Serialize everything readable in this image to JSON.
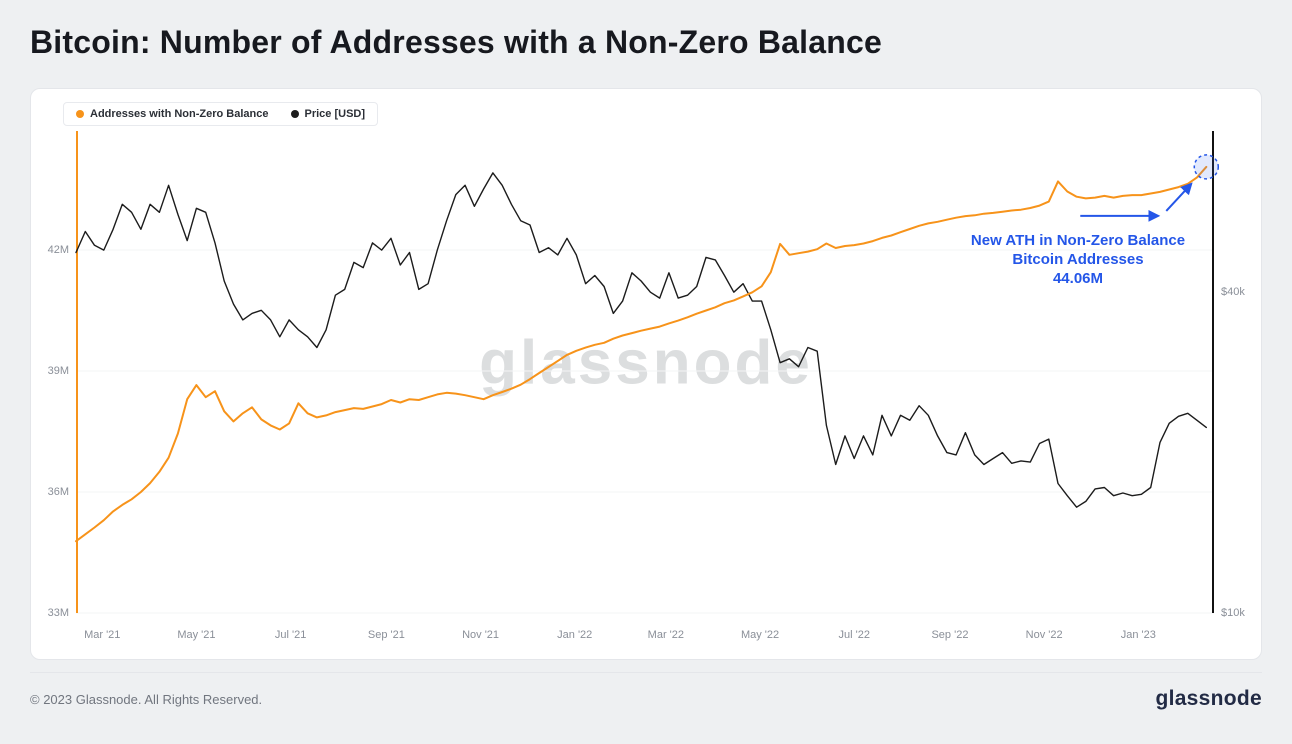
{
  "header": {
    "title": "Bitcoin: Number of Addresses with a Non-Zero Balance"
  },
  "legend": [
    {
      "label": "Addresses with Non-Zero Balance",
      "color": "#F7931A"
    },
    {
      "label": "Price [USD]",
      "color": "#1c1c1c"
    }
  ],
  "watermark": "glassnode",
  "annotation": {
    "lines": [
      "New ATH in Non-Zero Balance",
      "Bitcoin Addresses",
      "44.06M"
    ],
    "color": "#2456e8"
  },
  "footer": {
    "copyright": "© 2023 Glassnode. All Rights Reserved.",
    "brand": "glassnode"
  },
  "chart_data": {
    "type": "line",
    "title": "Bitcoin: Number of Addresses with a Non-Zero Balance",
    "x_domain": [
      "2021-02-12",
      "2023-02-19"
    ],
    "x_ticks": [
      {
        "date": "2021-03-01",
        "label": "Mar '21"
      },
      {
        "date": "2021-05-01",
        "label": "May '21"
      },
      {
        "date": "2021-07-01",
        "label": "Jul '21"
      },
      {
        "date": "2021-09-01",
        "label": "Sep '21"
      },
      {
        "date": "2021-11-01",
        "label": "Nov '21"
      },
      {
        "date": "2022-01-01",
        "label": "Jan '22"
      },
      {
        "date": "2022-03-01",
        "label": "Mar '22"
      },
      {
        "date": "2022-05-01",
        "label": "May '22"
      },
      {
        "date": "2022-07-01",
        "label": "Jul '22"
      },
      {
        "date": "2022-09-01",
        "label": "Sep '22"
      },
      {
        "date": "2022-11-01",
        "label": "Nov '22"
      },
      {
        "date": "2023-01-01",
        "label": "Jan '23"
      }
    ],
    "left_axis": {
      "unit": "M addresses",
      "scale": "linear",
      "ylim": [
        33,
        44.95
      ],
      "ticks": [
        {
          "value": 33,
          "label": "33M"
        },
        {
          "value": 36,
          "label": "36M"
        },
        {
          "value": 39,
          "label": "39M"
        },
        {
          "value": 42,
          "label": "42M"
        }
      ]
    },
    "right_axis": {
      "unit": "USD (thousands)",
      "scale": "log",
      "ylim": [
        10,
        80.3
      ],
      "ticks": [
        {
          "value": 10,
          "label": "$10k"
        },
        {
          "value": 40,
          "label": "$40k"
        }
      ]
    },
    "ath_marker": {
      "value_label": "44.06M"
    },
    "series": [
      {
        "name": "Addresses with Non-Zero Balance",
        "color": "#F7931A",
        "axis": "left",
        "start": "2021-02-12",
        "step_days": 6,
        "values": [
          34.78,
          34.95,
          35.12,
          35.3,
          35.52,
          35.68,
          35.82,
          36.0,
          36.22,
          36.5,
          36.85,
          37.45,
          38.3,
          38.65,
          38.35,
          38.5,
          38.0,
          37.75,
          37.95,
          38.1,
          37.8,
          37.65,
          37.55,
          37.7,
          38.2,
          37.95,
          37.85,
          37.9,
          37.98,
          38.03,
          38.08,
          38.06,
          38.12,
          38.18,
          38.28,
          38.22,
          38.3,
          38.28,
          38.35,
          38.42,
          38.46,
          38.44,
          38.4,
          38.35,
          38.3,
          38.4,
          38.48,
          38.56,
          38.66,
          38.8,
          38.95,
          39.1,
          39.25,
          39.4,
          39.5,
          39.58,
          39.65,
          39.7,
          39.8,
          39.88,
          39.94,
          40.0,
          40.05,
          40.1,
          40.18,
          40.25,
          40.33,
          40.42,
          40.5,
          40.58,
          40.68,
          40.75,
          40.85,
          40.95,
          41.1,
          41.45,
          42.15,
          41.88,
          41.92,
          41.96,
          42.02,
          42.16,
          42.05,
          42.1,
          42.12,
          42.16,
          42.22,
          42.3,
          42.36,
          42.44,
          42.52,
          42.6,
          42.66,
          42.7,
          42.75,
          42.8,
          42.84,
          42.86,
          42.9,
          42.92,
          42.95,
          42.98,
          43.0,
          43.04,
          43.1,
          43.2,
          43.7,
          43.45,
          43.32,
          43.28,
          43.3,
          43.34,
          43.3,
          43.34,
          43.36,
          43.36,
          43.4,
          43.44,
          43.5,
          43.56,
          43.64,
          43.8,
          44.06
        ]
      },
      {
        "name": "Price [USD]",
        "color": "#1c1c1c",
        "axis": "right",
        "start": "2021-02-12",
        "step_days": 6,
        "values": [
          47.5,
          52,
          49,
          48,
          52.5,
          58.5,
          56.5,
          52.5,
          58.5,
          56.5,
          63.5,
          56,
          50,
          57.5,
          56.5,
          49.5,
          42,
          38,
          35.5,
          36.5,
          37,
          35.5,
          33,
          35.5,
          34,
          33,
          31.5,
          34,
          39.5,
          40.5,
          45.5,
          44.5,
          49.5,
          48,
          50.5,
          45,
          47.5,
          40.5,
          41.5,
          48,
          54.5,
          61,
          63.5,
          58,
          62.5,
          67,
          63.5,
          58.5,
          54.5,
          53.5,
          47.5,
          48.5,
          47,
          50.5,
          47,
          41.5,
          43,
          41,
          36.5,
          38.5,
          43.5,
          42,
          40,
          39,
          43.5,
          39,
          39.5,
          41,
          46.5,
          46,
          43,
          40,
          41.5,
          38.5,
          38.5,
          34,
          29.5,
          30,
          29,
          31.5,
          31,
          22.5,
          19,
          21.5,
          19.5,
          21.5,
          19.8,
          23.5,
          21.5,
          23.5,
          23,
          24.5,
          23.5,
          21.5,
          20,
          19.8,
          21.8,
          19.8,
          19,
          19.5,
          20,
          19.1,
          19.3,
          19.2,
          20.8,
          21.2,
          17.5,
          16.6,
          15.8,
          16.2,
          17.1,
          17.2,
          16.6,
          16.8,
          16.6,
          16.7,
          17.2,
          20.9,
          22.7,
          23.4,
          23.7,
          23.0,
          22.3
        ]
      }
    ]
  }
}
